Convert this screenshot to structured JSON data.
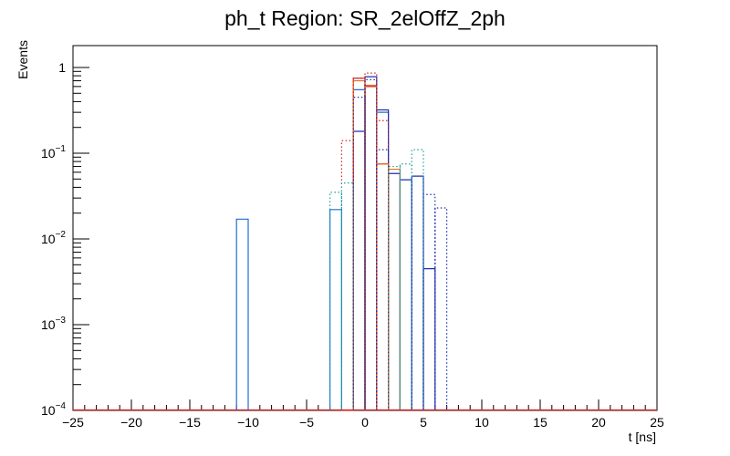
{
  "chart_data": {
    "type": "histogram",
    "title": "ph_t Region: SR_2elOffZ_2ph",
    "xlabel": "t [ns]",
    "ylabel": "Events",
    "xlim": [
      -25,
      25
    ],
    "ylim": [
      0.0001,
      1.8
    ],
    "yscale": "log",
    "bin_width": 1,
    "x_ticks": [
      -25,
      -20,
      -15,
      -10,
      -5,
      0,
      5,
      10,
      15,
      20,
      25
    ],
    "y_ticks": [
      {
        "value": 1,
        "base": "1",
        "exp": ""
      },
      {
        "value": 0.1,
        "base": "10",
        "exp": "−1"
      },
      {
        "value": 0.01,
        "base": "10",
        "exp": "−2"
      },
      {
        "value": 0.001,
        "base": "10",
        "exp": "−3"
      },
      {
        "value": 0.0001,
        "base": "10",
        "exp": "−4"
      }
    ],
    "series": [
      {
        "color": "#1f6fd1",
        "style": "solid",
        "bins": [
          {
            "x": -11,
            "y": 0.017
          },
          {
            "x": -3,
            "y": 0.022
          },
          {
            "x": -1,
            "y": 0.55
          },
          {
            "x": 0,
            "y": 0.6
          },
          {
            "x": 1,
            "y": 0.3
          }
        ]
      },
      {
        "color": "#1f2fb0",
        "style": "solid",
        "bins": [
          {
            "x": -1,
            "y": 0.18
          },
          {
            "x": 0,
            "y": 0.78
          },
          {
            "x": 1,
            "y": 0.32
          },
          {
            "x": 2,
            "y": 0.058
          },
          {
            "x": 3,
            "y": 0.049
          },
          {
            "x": 4,
            "y": 0.054
          },
          {
            "x": 5,
            "y": 0.0045
          }
        ]
      },
      {
        "color": "#dd2222",
        "style": "solid",
        "bins": [
          {
            "x": -2,
            "y": 0.0001
          },
          {
            "x": -1,
            "y": 0.75
          },
          {
            "x": 0,
            "y": 0.6
          },
          {
            "x": 1,
            "y": 0.075
          }
        ]
      },
      {
        "color": "#e07020",
        "style": "solid",
        "bins": [
          {
            "x": -1,
            "y": 0.7
          },
          {
            "x": 0,
            "y": 0.62
          },
          {
            "x": 1,
            "y": 0.075
          },
          {
            "x": 2,
            "y": 0.065
          }
        ]
      },
      {
        "color": "#dd2222",
        "style": "dotted",
        "bins": [
          {
            "x": -2,
            "y": 0.14
          },
          {
            "x": -1,
            "y": 0.75
          },
          {
            "x": 0,
            "y": 0.86
          },
          {
            "x": 1,
            "y": 0.24
          }
        ]
      },
      {
        "color": "#1f2fb0",
        "style": "dotted",
        "bins": [
          {
            "x": -1,
            "y": 0.45
          },
          {
            "x": 0,
            "y": 0.72
          },
          {
            "x": 1,
            "y": 0.11
          },
          {
            "x": 5,
            "y": 0.033
          },
          {
            "x": 6,
            "y": 0.023
          }
        ]
      },
      {
        "color": "#1fa0a0",
        "style": "dotted",
        "bins": [
          {
            "x": -3,
            "y": 0.035
          },
          {
            "x": -2,
            "y": 0.045
          },
          {
            "x": 2,
            "y": 0.07
          },
          {
            "x": 3,
            "y": 0.075
          },
          {
            "x": 4,
            "y": 0.11
          }
        ]
      }
    ]
  }
}
